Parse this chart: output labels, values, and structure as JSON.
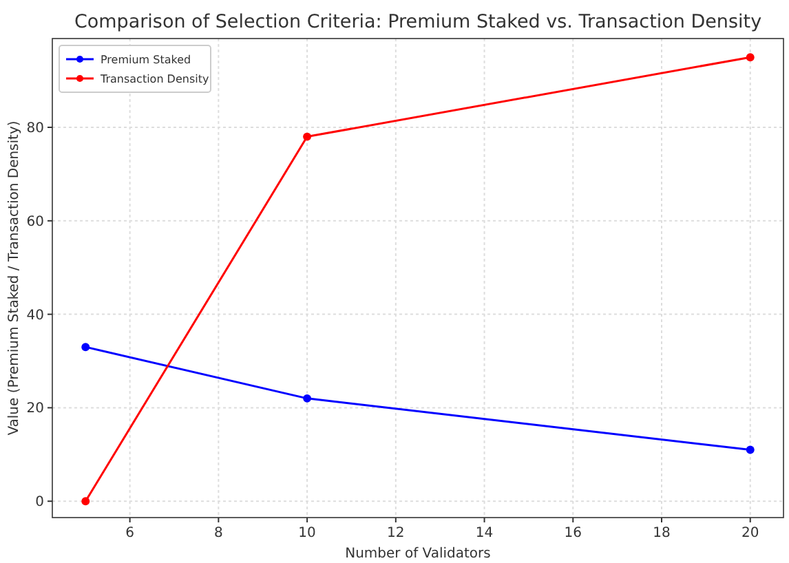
{
  "chart_data": {
    "type": "line",
    "title": "Comparison of Selection Criteria: Premium Staked vs. Transaction Density",
    "xlabel": "Number of Validators",
    "ylabel": "Value (Premium Staked / Transaction Density)",
    "x": [
      5,
      10,
      20
    ],
    "series": [
      {
        "name": "Premium Staked",
        "color": "#0000ff",
        "values": [
          33,
          22,
          11
        ]
      },
      {
        "name": "Transaction Density",
        "color": "#ff0000",
        "values": [
          0,
          78,
          95
        ]
      }
    ],
    "xlim": [
      4.25,
      20.75
    ],
    "xticks": [
      6,
      8,
      10,
      12,
      14,
      16,
      18,
      20
    ],
    "ylim": [
      -3.5,
      99
    ],
    "yticks": [
      0,
      20,
      40,
      60,
      80
    ],
    "grid": true,
    "legend": "top left",
    "marker": "circle"
  }
}
